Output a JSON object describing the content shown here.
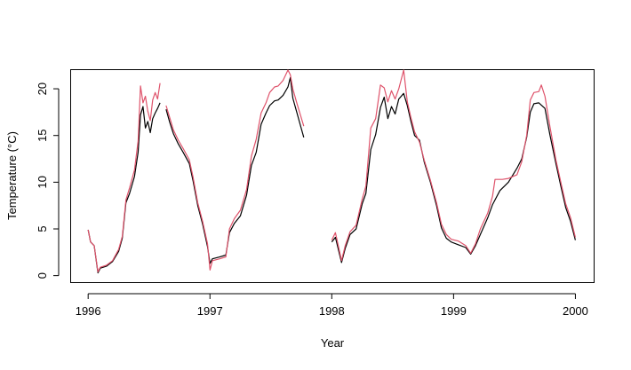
{
  "chart_data": {
    "type": "line",
    "xlabel": "Year",
    "ylabel": "Temperature (°C)",
    "xlim": [
      1995.86,
      2000.15
    ],
    "ylim": [
      -0.7,
      22.0
    ],
    "xticks": [
      1996,
      1997,
      1998,
      1999,
      2000
    ],
    "yticks": [
      0,
      5,
      10,
      15,
      20
    ],
    "grid": false,
    "series": [
      {
        "color": "#000000",
        "segments": [
          [
            [
              1996.0,
              4.9
            ],
            [
              1996.02,
              3.6
            ],
            [
              1996.05,
              3.2
            ],
            [
              1996.08,
              0.3
            ],
            [
              1996.1,
              0.8
            ],
            [
              1996.15,
              1.0
            ],
            [
              1996.2,
              1.5
            ],
            [
              1996.25,
              2.6
            ],
            [
              1996.28,
              4.0
            ],
            [
              1996.31,
              7.8
            ],
            [
              1996.34,
              8.8
            ],
            [
              1996.38,
              10.6
            ],
            [
              1996.41,
              13.2
            ],
            [
              1996.43,
              17.2
            ],
            [
              1996.45,
              18.1
            ],
            [
              1996.47,
              15.8
            ],
            [
              1996.49,
              16.5
            ],
            [
              1996.51,
              15.3
            ],
            [
              1996.53,
              16.8
            ],
            [
              1996.55,
              17.4
            ],
            [
              1996.57,
              17.9
            ],
            [
              1996.59,
              18.5
            ]
          ],
          [
            [
              1996.64,
              17.8
            ],
            [
              1996.67,
              16.4
            ],
            [
              1996.7,
              15.2
            ],
            [
              1996.74,
              14.1
            ],
            [
              1996.78,
              13.2
            ],
            [
              1996.83,
              12.0
            ],
            [
              1996.86,
              10.2
            ],
            [
              1996.9,
              7.5
            ],
            [
              1996.94,
              5.5
            ],
            [
              1996.98,
              3.1
            ],
            [
              1997.0,
              1.3
            ],
            [
              1997.02,
              1.8
            ],
            [
              1997.08,
              2.0
            ],
            [
              1997.13,
              2.2
            ],
            [
              1997.16,
              4.6
            ],
            [
              1997.2,
              5.6
            ],
            [
              1997.25,
              6.4
            ],
            [
              1997.3,
              8.6
            ],
            [
              1997.34,
              11.8
            ],
            [
              1997.38,
              13.2
            ],
            [
              1997.42,
              16.2
            ],
            [
              1997.46,
              17.4
            ],
            [
              1997.49,
              18.2
            ],
            [
              1997.53,
              18.7
            ],
            [
              1997.56,
              18.8
            ],
            [
              1997.6,
              19.3
            ],
            [
              1997.64,
              20.2
            ],
            [
              1997.66,
              21.2
            ],
            [
              1997.68,
              19.0
            ],
            [
              1997.71,
              17.6
            ],
            [
              1997.74,
              16.2
            ],
            [
              1997.77,
              14.8
            ]
          ],
          [
            [
              1998.0,
              3.6
            ],
            [
              1998.03,
              4.1
            ],
            [
              1998.05,
              3.0
            ],
            [
              1998.08,
              1.4
            ],
            [
              1998.11,
              2.9
            ],
            [
              1998.15,
              4.4
            ],
            [
              1998.2,
              5.0
            ],
            [
              1998.25,
              7.7
            ],
            [
              1998.28,
              8.8
            ],
            [
              1998.32,
              13.5
            ],
            [
              1998.36,
              15.1
            ],
            [
              1998.4,
              18.0
            ],
            [
              1998.43,
              19.1
            ],
            [
              1998.46,
              16.8
            ],
            [
              1998.49,
              18.1
            ],
            [
              1998.52,
              17.3
            ],
            [
              1998.55,
              18.9
            ],
            [
              1998.59,
              19.5
            ],
            [
              1998.62,
              18.2
            ],
            [
              1998.65,
              16.5
            ],
            [
              1998.68,
              15.0
            ],
            [
              1998.72,
              14.5
            ],
            [
              1998.76,
              12.1
            ],
            [
              1998.81,
              10.0
            ],
            [
              1998.86,
              7.5
            ],
            [
              1998.9,
              5.1
            ],
            [
              1998.94,
              4.0
            ],
            [
              1998.98,
              3.6
            ],
            [
              1999.04,
              3.3
            ],
            [
              1999.1,
              3.0
            ],
            [
              1999.14,
              2.3
            ],
            [
              1999.18,
              3.2
            ],
            [
              1999.22,
              4.4
            ],
            [
              1999.28,
              6.2
            ],
            [
              1999.32,
              7.6
            ],
            [
              1999.38,
              9.1
            ],
            [
              1999.45,
              10.0
            ],
            [
              1999.52,
              11.5
            ],
            [
              1999.56,
              12.5
            ],
            [
              1999.6,
              14.8
            ],
            [
              1999.63,
              17.5
            ],
            [
              1999.66,
              18.4
            ],
            [
              1999.7,
              18.5
            ],
            [
              1999.75,
              17.9
            ],
            [
              1999.79,
              15.1
            ],
            [
              1999.84,
              12.0
            ],
            [
              1999.88,
              9.6
            ],
            [
              1999.92,
              7.3
            ],
            [
              1999.96,
              5.8
            ],
            [
              2000.0,
              3.8
            ]
          ]
        ]
      },
      {
        "color": "#DF536B",
        "segments": [
          [
            [
              1996.0,
              4.9
            ],
            [
              1996.02,
              3.6
            ],
            [
              1996.05,
              3.2
            ],
            [
              1996.08,
              0.4
            ],
            [
              1996.1,
              0.9
            ],
            [
              1996.15,
              1.1
            ],
            [
              1996.2,
              1.6
            ],
            [
              1996.25,
              2.8
            ],
            [
              1996.28,
              4.2
            ],
            [
              1996.31,
              8.1
            ],
            [
              1996.34,
              9.4
            ],
            [
              1996.38,
              11.3
            ],
            [
              1996.41,
              14.4
            ],
            [
              1996.43,
              20.3
            ],
            [
              1996.45,
              18.5
            ],
            [
              1996.47,
              19.2
            ],
            [
              1996.49,
              17.6
            ],
            [
              1996.51,
              16.6
            ],
            [
              1996.53,
              18.8
            ],
            [
              1996.55,
              19.6
            ],
            [
              1996.57,
              18.9
            ],
            [
              1996.59,
              20.6
            ]
          ],
          [
            [
              1996.64,
              18.2
            ],
            [
              1996.67,
              16.9
            ],
            [
              1996.7,
              15.6
            ],
            [
              1996.74,
              14.5
            ],
            [
              1996.78,
              13.6
            ],
            [
              1996.83,
              12.4
            ],
            [
              1996.86,
              10.6
            ],
            [
              1996.9,
              7.8
            ],
            [
              1996.94,
              5.8
            ],
            [
              1996.98,
              3.4
            ],
            [
              1997.0,
              0.6
            ],
            [
              1997.02,
              1.6
            ],
            [
              1997.08,
              1.8
            ],
            [
              1997.13,
              2.0
            ],
            [
              1997.16,
              5.0
            ],
            [
              1997.2,
              6.1
            ],
            [
              1997.25,
              7.0
            ],
            [
              1997.3,
              9.2
            ],
            [
              1997.34,
              12.8
            ],
            [
              1997.38,
              14.6
            ],
            [
              1997.42,
              17.4
            ],
            [
              1997.46,
              18.5
            ],
            [
              1997.49,
              19.6
            ],
            [
              1997.53,
              20.2
            ],
            [
              1997.56,
              20.3
            ],
            [
              1997.6,
              20.9
            ],
            [
              1997.64,
              22.0
            ],
            [
              1997.66,
              21.5
            ],
            [
              1997.68,
              20.0
            ],
            [
              1997.71,
              18.6
            ],
            [
              1997.74,
              17.3
            ],
            [
              1997.77,
              16.0
            ]
          ],
          [
            [
              1998.0,
              3.8
            ],
            [
              1998.03,
              4.6
            ],
            [
              1998.05,
              3.4
            ],
            [
              1998.08,
              1.6
            ],
            [
              1998.11,
              3.2
            ],
            [
              1998.15,
              4.7
            ],
            [
              1998.2,
              5.4
            ],
            [
              1998.25,
              8.2
            ],
            [
              1998.28,
              9.6
            ],
            [
              1998.32,
              15.8
            ],
            [
              1998.36,
              16.8
            ],
            [
              1998.4,
              20.4
            ],
            [
              1998.43,
              20.1
            ],
            [
              1998.46,
              18.6
            ],
            [
              1998.49,
              19.8
            ],
            [
              1998.52,
              18.9
            ],
            [
              1998.55,
              20.0
            ],
            [
              1998.59,
              22.0
            ],
            [
              1998.62,
              18.6
            ],
            [
              1998.65,
              16.9
            ],
            [
              1998.68,
              15.4
            ],
            [
              1998.72,
              14.3
            ],
            [
              1998.76,
              12.3
            ],
            [
              1998.81,
              10.2
            ],
            [
              1998.86,
              7.8
            ],
            [
              1998.9,
              5.5
            ],
            [
              1998.94,
              4.4
            ],
            [
              1998.98,
              3.9
            ],
            [
              1999.04,
              3.7
            ],
            [
              1999.1,
              3.2
            ],
            [
              1999.14,
              2.4
            ],
            [
              1999.18,
              3.4
            ],
            [
              1999.22,
              5.0
            ],
            [
              1999.28,
              6.7
            ],
            [
              1999.32,
              8.5
            ],
            [
              1999.34,
              10.3
            ],
            [
              1999.4,
              10.3
            ],
            [
              1999.45,
              10.4
            ],
            [
              1999.52,
              10.8
            ],
            [
              1999.56,
              12.2
            ],
            [
              1999.6,
              15.0
            ],
            [
              1999.63,
              18.8
            ],
            [
              1999.66,
              19.6
            ],
            [
              1999.7,
              19.7
            ],
            [
              1999.72,
              20.4
            ],
            [
              1999.75,
              19.2
            ],
            [
              1999.79,
              16.0
            ],
            [
              1999.84,
              12.4
            ],
            [
              1999.88,
              10.0
            ],
            [
              1999.92,
              7.7
            ],
            [
              1999.96,
              6.2
            ],
            [
              2000.0,
              4.1
            ]
          ]
        ]
      }
    ]
  }
}
